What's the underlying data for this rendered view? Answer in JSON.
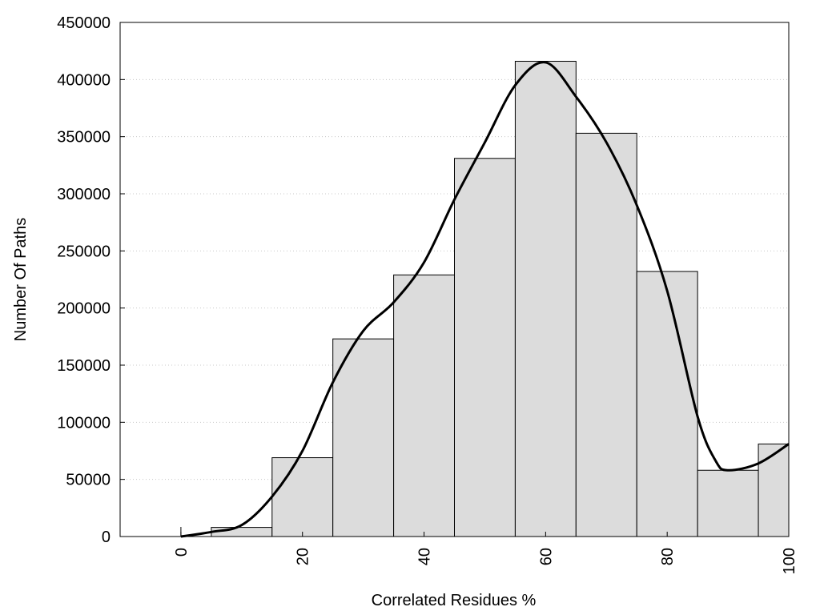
{
  "chart_data": {
    "type": "bar",
    "xlabel": "Correlated Residues %",
    "ylabel": "Number Of Paths",
    "title": "",
    "xlim": [
      -10,
      100
    ],
    "ylim": [
      0,
      450000
    ],
    "x_ticks": [
      0,
      20,
      40,
      60,
      80,
      100
    ],
    "x_tick_labels": [
      "0",
      "20",
      "40",
      "60",
      "80",
      "100"
    ],
    "y_ticks": [
      0,
      50000,
      100000,
      150000,
      200000,
      250000,
      300000,
      350000,
      400000,
      450000
    ],
    "y_tick_labels": [
      "0",
      "50000",
      "100000",
      "150000",
      "200000",
      "250000",
      "300000",
      "350000",
      "400000",
      "450000"
    ],
    "grid": "horizontal dotted",
    "bar_color": "#dcdcdc",
    "bar_edge_color": "#000000",
    "line_color": "#000000",
    "bars": [
      {
        "x_start": 0,
        "x_end": 5,
        "value": 0
      },
      {
        "x_start": 5,
        "x_end": 15,
        "value": 8000
      },
      {
        "x_start": 15,
        "x_end": 25,
        "value": 69000
      },
      {
        "x_start": 25,
        "x_end": 35,
        "value": 173000
      },
      {
        "x_start": 35,
        "x_end": 45,
        "value": 229000
      },
      {
        "x_start": 45,
        "x_end": 55,
        "value": 331000
      },
      {
        "x_start": 55,
        "x_end": 65,
        "value": 416000
      },
      {
        "x_start": 65,
        "x_end": 75,
        "value": 353000
      },
      {
        "x_start": 75,
        "x_end": 85,
        "value": 232000
      },
      {
        "x_start": 85,
        "x_end": 95,
        "value": 58000
      },
      {
        "x_start": 95,
        "x_end": 100,
        "value": 81000
      }
    ],
    "smooth_curve": {
      "x": [
        0,
        5,
        10,
        15,
        20,
        25,
        30,
        35,
        40,
        45,
        50,
        55,
        60,
        65,
        70,
        75,
        80,
        85,
        88,
        90,
        95,
        100
      ],
      "y": [
        0,
        4000,
        10000,
        35000,
        75000,
        135000,
        180000,
        205000,
        240000,
        295000,
        345000,
        395000,
        415000,
        385000,
        345000,
        290000,
        215000,
        105000,
        66000,
        58000,
        64000,
        81000
      ]
    }
  }
}
